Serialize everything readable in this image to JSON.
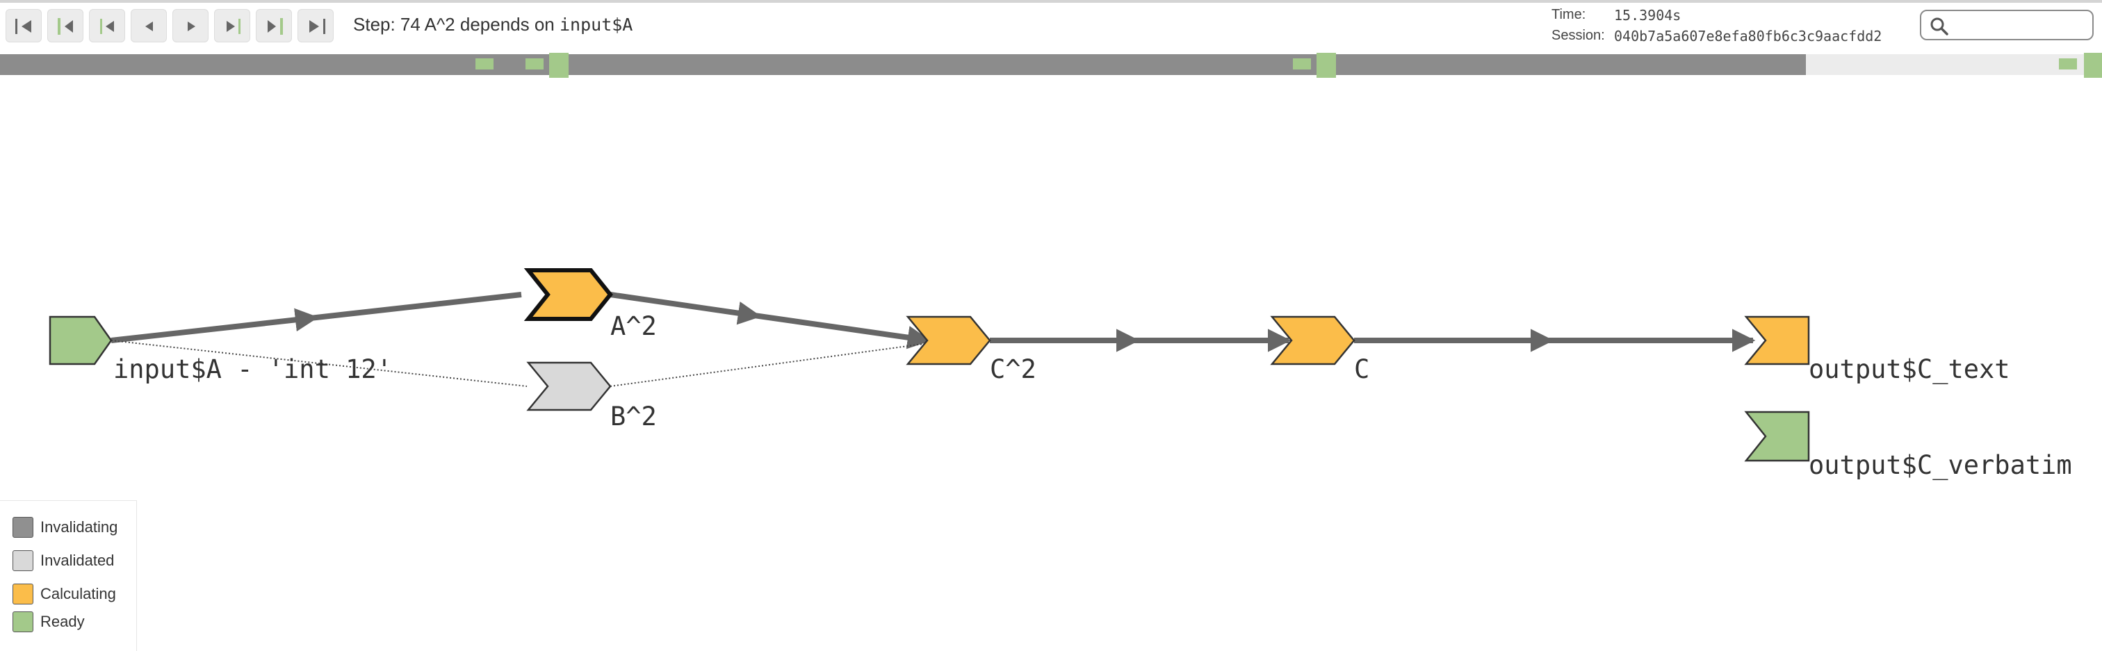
{
  "toolbar": {
    "buttons": [
      {
        "name": "first-step-button",
        "icon": "skip-to-start-icon"
      },
      {
        "name": "previous-ready-button",
        "icon": "step-back-ready-icon"
      },
      {
        "name": "previous-cycle-button",
        "icon": "step-back-cycle-icon"
      },
      {
        "name": "previous-step-button",
        "icon": "step-back-icon"
      },
      {
        "name": "next-step-button",
        "icon": "step-forward-icon"
      },
      {
        "name": "next-cycle-button",
        "icon": "step-forward-cycle-icon"
      },
      {
        "name": "next-ready-button",
        "icon": "step-forward-ready-icon"
      },
      {
        "name": "last-step-button",
        "icon": "skip-to-end-icon"
      }
    ],
    "step_prefix": "Step: 74 A^2 depends on ",
    "step_code": "input$A"
  },
  "info": {
    "time_label": "Time:",
    "time_value": "15.3904s",
    "session_label": "Session:",
    "session_value": "040b7a5a607e8efa80fb6c3c9aacfdd2"
  },
  "search": {
    "placeholder": "",
    "value": "",
    "icon": "search-icon"
  },
  "timeline": {
    "progress": 0.859
  },
  "graph": {
    "nodes": [
      {
        "id": "input_A",
        "label": "input$A - 'int 12'",
        "state": "Ready",
        "shape": "input"
      },
      {
        "id": "A2",
        "label": "A^2",
        "state": "Calculating",
        "shape": "observable",
        "active": true
      },
      {
        "id": "B2",
        "label": "B^2",
        "state": "Invalidated",
        "shape": "observable"
      },
      {
        "id": "C2",
        "label": "C^2",
        "state": "Calculating",
        "shape": "observable"
      },
      {
        "id": "C",
        "label": "C",
        "state": "Calculating",
        "shape": "observable"
      },
      {
        "id": "output_C_text",
        "label": "output$C_text",
        "state": "Calculating",
        "shape": "output"
      },
      {
        "id": "output_C_verbatim",
        "label": "output$C_verbatim",
        "state": "Ready",
        "shape": "output"
      }
    ]
  },
  "legend": {
    "items": [
      {
        "label": "Invalidating",
        "color": "#909090"
      },
      {
        "label": "Invalidated",
        "color": "#d9d9d9"
      },
      {
        "label": "Calculating",
        "color": "#fbbd4a"
      },
      {
        "label": "Ready",
        "color": "#a3c98a"
      }
    ]
  },
  "colors": {
    "ready": "#a3c98a",
    "calculating": "#fbbd4a",
    "invalidated": "#d9d9d9",
    "invalidating": "#909090",
    "edge": "#666666"
  }
}
